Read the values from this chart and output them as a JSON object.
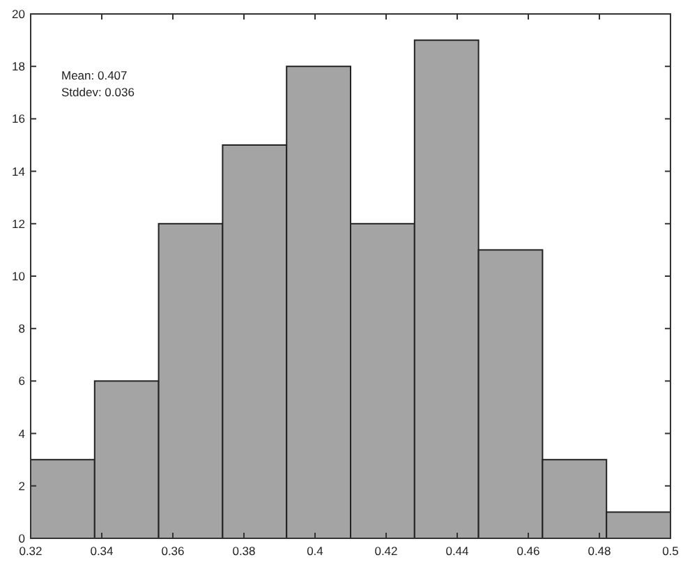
{
  "chart_data": {
    "type": "histogram",
    "bins": [
      0.32,
      0.338,
      0.356,
      0.374,
      0.392,
      0.41,
      0.428,
      0.446,
      0.464,
      0.482,
      0.5
    ],
    "values": [
      3,
      6,
      12,
      15,
      18,
      12,
      19,
      11,
      3,
      1
    ],
    "color": "#a4a4a4",
    "xlim": [
      0.32,
      0.5
    ],
    "ylim": [
      0,
      20
    ],
    "xticks": [
      0.32,
      0.34,
      0.36,
      0.38,
      0.4,
      0.42,
      0.44,
      0.46,
      0.48,
      0.5
    ],
    "yticks": [
      0,
      2,
      4,
      6,
      8,
      10,
      12,
      14,
      16,
      18,
      20
    ],
    "annotations": [
      "Mean: 0.407",
      "Stddev: 0.036"
    ],
    "grid": false
  }
}
